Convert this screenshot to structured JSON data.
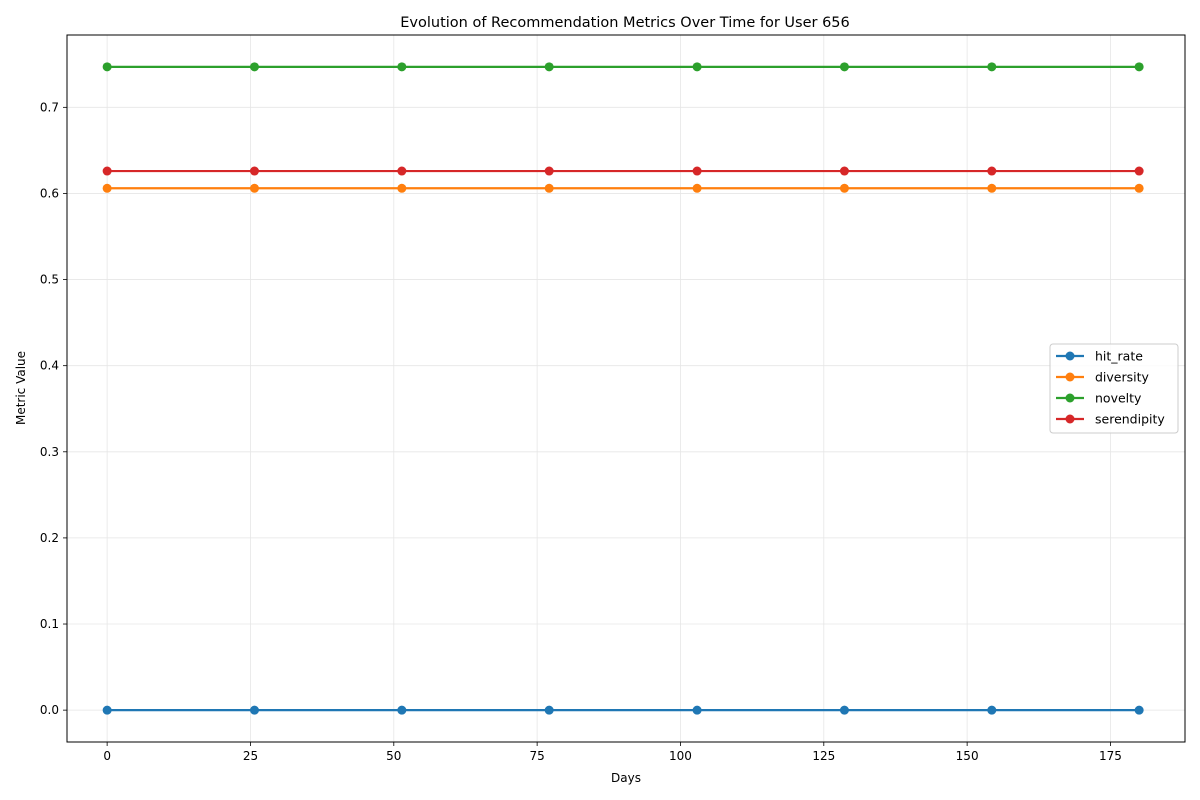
{
  "chart_data": {
    "type": "line",
    "title": "Evolution of Recommendation Metrics Over Time for User 656",
    "xlabel": "Days",
    "ylabel": "Metric Value",
    "xlim": [
      -7,
      188
    ],
    "ylim": [
      -0.037,
      0.784
    ],
    "xticks": [
      0,
      25,
      50,
      75,
      100,
      125,
      150,
      175
    ],
    "yticks": [
      0.0,
      0.1,
      0.2,
      0.3,
      0.4,
      0.5,
      0.6,
      0.7
    ],
    "grid": true,
    "legend_position": "center-right",
    "x": [
      0,
      25.7,
      51.4,
      77.1,
      102.9,
      128.6,
      154.3,
      180
    ],
    "series": [
      {
        "name": "hit_rate",
        "color": "#1f77b4",
        "values": [
          0.0,
          0.0,
          0.0,
          0.0,
          0.0,
          0.0,
          0.0,
          0.0
        ]
      },
      {
        "name": "diversity",
        "color": "#ff7f0e",
        "values": [
          0.606,
          0.606,
          0.606,
          0.606,
          0.606,
          0.606,
          0.606,
          0.606
        ]
      },
      {
        "name": "novelty",
        "color": "#2ca02c",
        "values": [
          0.747,
          0.747,
          0.747,
          0.747,
          0.747,
          0.747,
          0.747,
          0.747
        ]
      },
      {
        "name": "serendipity",
        "color": "#d62728",
        "values": [
          0.626,
          0.626,
          0.626,
          0.626,
          0.626,
          0.626,
          0.626,
          0.626
        ]
      }
    ]
  }
}
